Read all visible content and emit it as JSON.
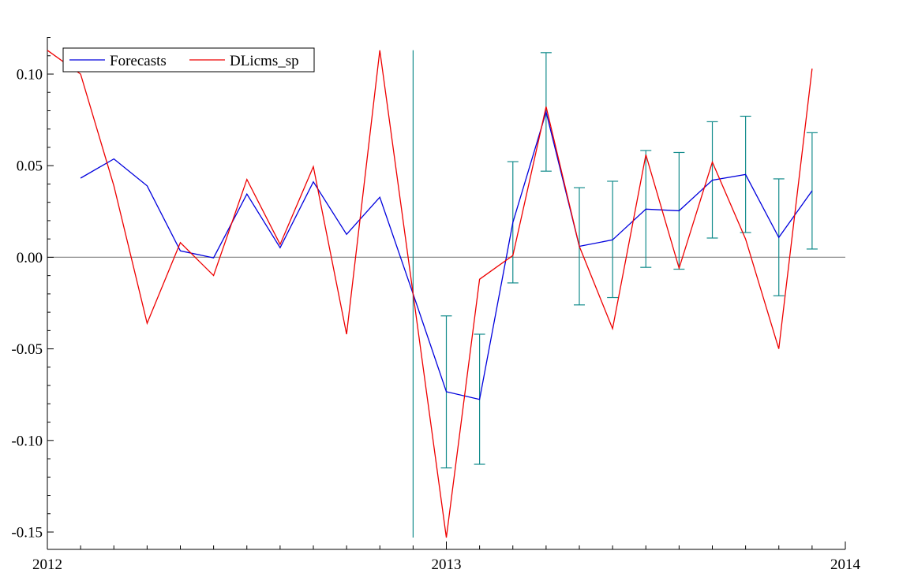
{
  "chart_data": {
    "type": "line",
    "title": "",
    "xlabel": "",
    "ylabel": "",
    "xlim": [
      2012.0,
      2014.0
    ],
    "ylim": [
      -0.16,
      0.12
    ],
    "x_ticks": [
      {
        "value": 2012,
        "label": "2012"
      },
      {
        "value": 2013,
        "label": "2013"
      },
      {
        "value": 2014,
        "label": "2014"
      }
    ],
    "y_ticks": [
      {
        "value": 0.1,
        "label": "0.10"
      },
      {
        "value": 0.05,
        "label": "0.05"
      },
      {
        "value": 0.0,
        "label": "0.00"
      },
      {
        "value": -0.05,
        "label": "-0.05"
      },
      {
        "value": -0.1,
        "label": "-0.10"
      },
      {
        "value": -0.15,
        "label": "-0.15"
      }
    ],
    "zero_line": true,
    "grid": false,
    "legend_position": "top-left",
    "series": [
      {
        "name": "Forecasts",
        "color": "#0000dd",
        "x": [
          2012.0833,
          2012.1667,
          2012.25,
          2012.3333,
          2012.4167,
          2012.5,
          2012.5833,
          2012.6667,
          2012.75,
          2012.8333,
          2012.9167,
          2013.0,
          2013.0833,
          2013.1667,
          2013.25,
          2013.3333,
          2013.4167,
          2013.5,
          2013.5833,
          2013.6667,
          2013.75,
          2013.8333,
          2013.9167
        ],
        "values": [
          0.0432,
          0.0537,
          0.039,
          0.0035,
          -0.0003,
          0.0345,
          0.0052,
          0.0412,
          0.0125,
          0.0328,
          -0.02,
          -0.0734,
          -0.0776,
          0.019,
          0.0793,
          0.006,
          0.0095,
          0.0263,
          0.0254,
          0.0421,
          0.0452,
          0.0108,
          0.0363
        ]
      },
      {
        "name": "DLicms_sp",
        "color": "#ee0000",
        "x": [
          2012.0,
          2012.0833,
          2012.1667,
          2012.25,
          2012.3333,
          2012.4167,
          2012.5,
          2012.5833,
          2012.6667,
          2012.75,
          2012.8333,
          2012.9167,
          2013.0,
          2013.0833,
          2013.1667,
          2013.25,
          2013.3333,
          2013.4167,
          2013.5,
          2013.5833,
          2013.6667,
          2013.75,
          2013.8333,
          2013.9167
        ],
        "values": [
          0.113,
          0.1,
          0.039,
          -0.036,
          0.008,
          -0.01,
          0.0425,
          0.007,
          0.0495,
          -0.042,
          0.113,
          -0.02,
          -0.153,
          -0.012,
          0.001,
          0.0822,
          0.006,
          -0.039,
          0.056,
          -0.006,
          0.052,
          0.01,
          -0.05,
          0.103
        ]
      }
    ],
    "error_bars": {
      "color": "#138c8c",
      "x": [
        2012.9167,
        2013.0,
        2013.0833,
        2013.1667,
        2013.25,
        2013.3333,
        2013.4167,
        2013.5,
        2013.5833,
        2013.6667,
        2013.75,
        2013.8333,
        2013.9167
      ],
      "low": [
        -0.153,
        -0.115,
        -0.113,
        -0.014,
        0.047,
        -0.026,
        -0.022,
        -0.0055,
        -0.0065,
        0.0105,
        0.0135,
        -0.021,
        0.0045
      ],
      "high": [
        0.113,
        -0.032,
        -0.042,
        0.0522,
        0.1117,
        0.038,
        0.0415,
        0.0583,
        0.0572,
        0.074,
        0.077,
        0.0428,
        0.068
      ],
      "capped": [
        false,
        true,
        true,
        true,
        true,
        true,
        true,
        true,
        true,
        true,
        true,
        true,
        true
      ]
    }
  }
}
